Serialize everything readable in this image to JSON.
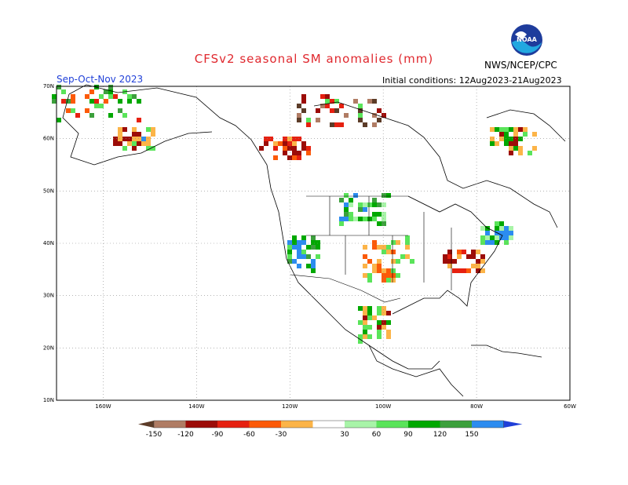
{
  "header": {
    "title": "CFSv2 seasonal SM anomalies (mm)",
    "season": "Sep-Oct-Nov 2023",
    "initial_conditions": "Initial conditions: 12Aug2023-21Aug2023",
    "agency": "NWS/NCEP/CPC",
    "logo_text": "NOAA",
    "logo_icon": "noaa-logo-icon"
  },
  "axes": {
    "lat_labels": [
      "70N",
      "60N",
      "50N",
      "40N",
      "30N",
      "20N",
      "10N"
    ],
    "lon_labels": [
      "160W",
      "140W",
      "120W",
      "100W",
      "80W",
      "60W"
    ],
    "lat_values": [
      70,
      60,
      50,
      40,
      30,
      20,
      10
    ],
    "lon_values": [
      -160,
      -140,
      -120,
      -100,
      -80,
      -60
    ],
    "lat_range": [
      10,
      70
    ],
    "lon_range": [
      -170,
      -60
    ],
    "grid": "dotted"
  },
  "colorbar": {
    "labels": [
      "-150",
      "-120",
      "-90",
      "-60",
      "-30",
      "30",
      "60",
      "90",
      "120",
      "150"
    ],
    "colors": [
      "#5c3c28",
      "#b07c64",
      "#9c0c08",
      "#e62010",
      "#fc5a08",
      "#fcb448",
      "#ffffff",
      "#a8f4a8",
      "#5ae45a",
      "#00a800",
      "#3ca03c",
      "#2c8cf0",
      "#2040d8"
    ]
  }
}
